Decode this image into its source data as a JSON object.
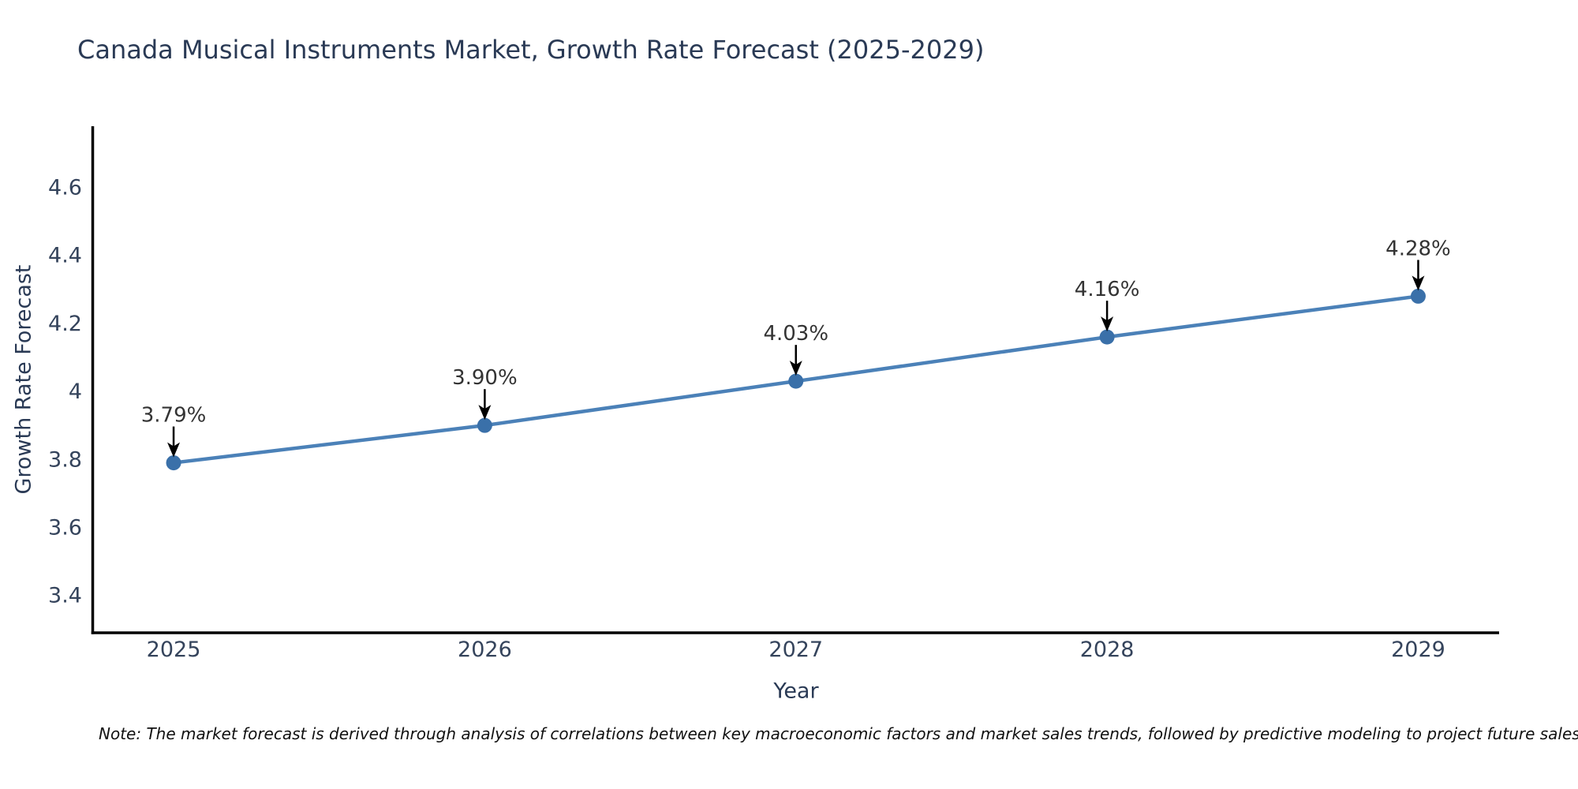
{
  "page": {
    "background": "#ffffff"
  },
  "chart_data": {
    "type": "line",
    "title": "Canada Musical Instruments Market, Growth Rate Forecast (2025-2029)",
    "xlabel": "Year",
    "ylabel": "Growth Rate Forecast",
    "x": [
      2025,
      2026,
      2027,
      2028,
      2029
    ],
    "series": [
      {
        "name": "Growth Rate Forecast",
        "values": [
          3.79,
          3.9,
          4.03,
          4.16,
          4.28
        ]
      }
    ],
    "point_labels": [
      "3.79%",
      "3.90%",
      "4.03%",
      "4.16%",
      "4.28%"
    ],
    "yticks": {
      "values": [
        3.4,
        3.6,
        3.8,
        4.0,
        4.2,
        4.4,
        4.6
      ],
      "labels": [
        "3.4",
        "3.6",
        "3.8",
        "4",
        "4.2",
        "4.4",
        "4.6"
      ]
    },
    "xlim": [
      2024.74,
      2029.26
    ],
    "ylim": [
      3.29,
      4.78
    ],
    "grid": false,
    "legend": "none",
    "colors": {
      "line": "#4b81b8",
      "marker": "#3a70a9",
      "axis": "#000000",
      "tick_text": "#35445c",
      "title_text": "#2a3a55",
      "annotation_text": "#333333",
      "arrow": "#000000",
      "note_text": "#111111"
    }
  },
  "note": {
    "text": "Note: The market forecast is derived through analysis of correlations between key macroeconomic factors and market sales trends, followed by predictive modeling to project future sales"
  }
}
